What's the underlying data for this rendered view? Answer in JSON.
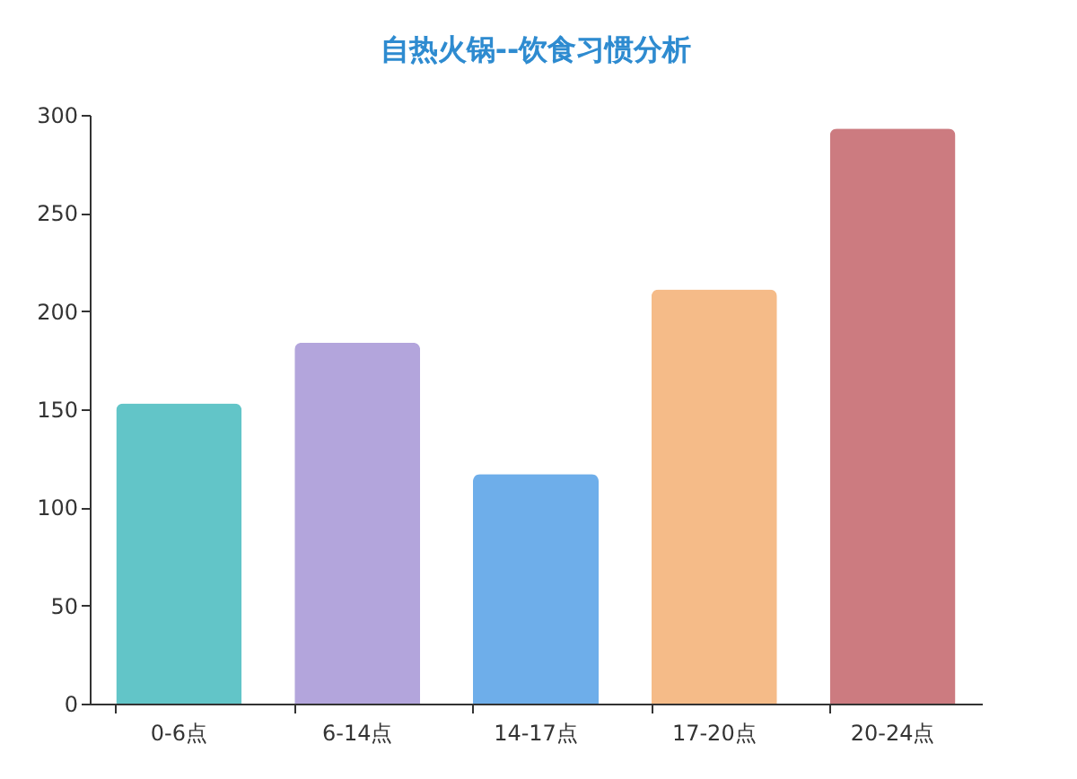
{
  "chart_data": {
    "type": "bar",
    "title": "自热火锅--饮食习惯分析",
    "categories": [
      "0-6点",
      "6-14点",
      "14-17点",
      "17-20点",
      "20-24点"
    ],
    "values": [
      153,
      184,
      117,
      211,
      293
    ],
    "colors": [
      "#62c5c8",
      "#b3a5dc",
      "#6eaeea",
      "#f5bb88",
      "#cc7b80"
    ],
    "ylim": [
      0,
      300
    ],
    "yticks": [
      0,
      50,
      100,
      150,
      200,
      250,
      300
    ],
    "grid": false,
    "legend": false
  }
}
